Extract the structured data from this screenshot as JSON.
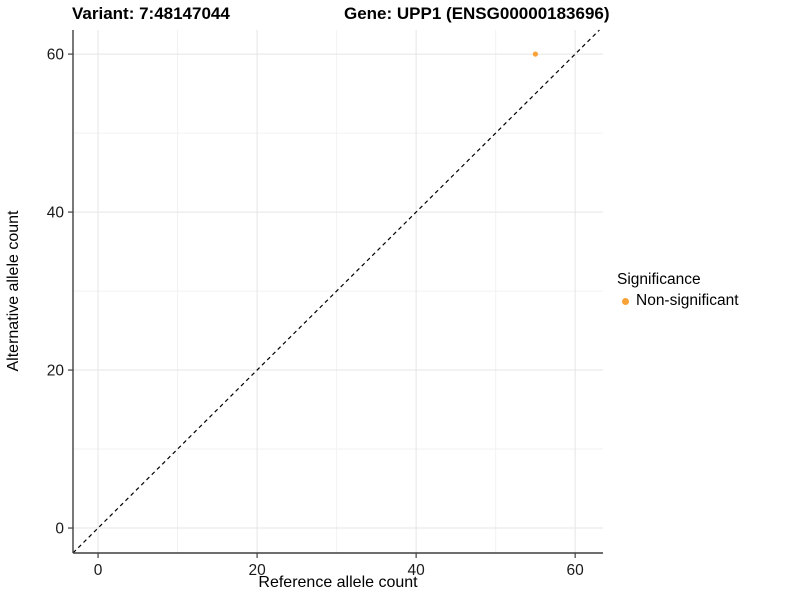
{
  "titles": {
    "left": "Variant: 7:48147044",
    "right": "Gene: UPP1 (ENSG00000183696)"
  },
  "legend": {
    "title": "Significance",
    "items": [
      {
        "label": "Non-significant",
        "color": "#F9A237"
      }
    ]
  },
  "chart_data": {
    "type": "scatter",
    "title": "Variant: 7:48147044 | Gene: UPP1 (ENSG00000183696)",
    "xlabel": "Reference allele count",
    "ylabel": "Alternative allele count",
    "x_ticks": [
      0,
      20,
      40,
      60
    ],
    "y_ticks": [
      0,
      20,
      40,
      60
    ],
    "xlim": [
      -3.15,
      63.5
    ],
    "ylim": [
      -3.16,
      63.05
    ],
    "grid": "major+minor",
    "legend_position": "right",
    "series": [
      {
        "name": "Non-significant",
        "color": "#F9A237",
        "points": [
          {
            "x": 55,
            "y": 60
          }
        ]
      }
    ],
    "reference_line": {
      "type": "identity y=x",
      "style": "dashed",
      "color": "#000000"
    }
  },
  "colors": {
    "background": "#FFFFFF",
    "axis_line": "#3F3F3F",
    "tick_mark": "#3F3F3F",
    "tick_label": "#1A1A1A",
    "grid_major": "#E5E5E5",
    "grid_minor": "#F2F2F2",
    "point_orange": "#F9A237",
    "reference_line": "#000000"
  }
}
